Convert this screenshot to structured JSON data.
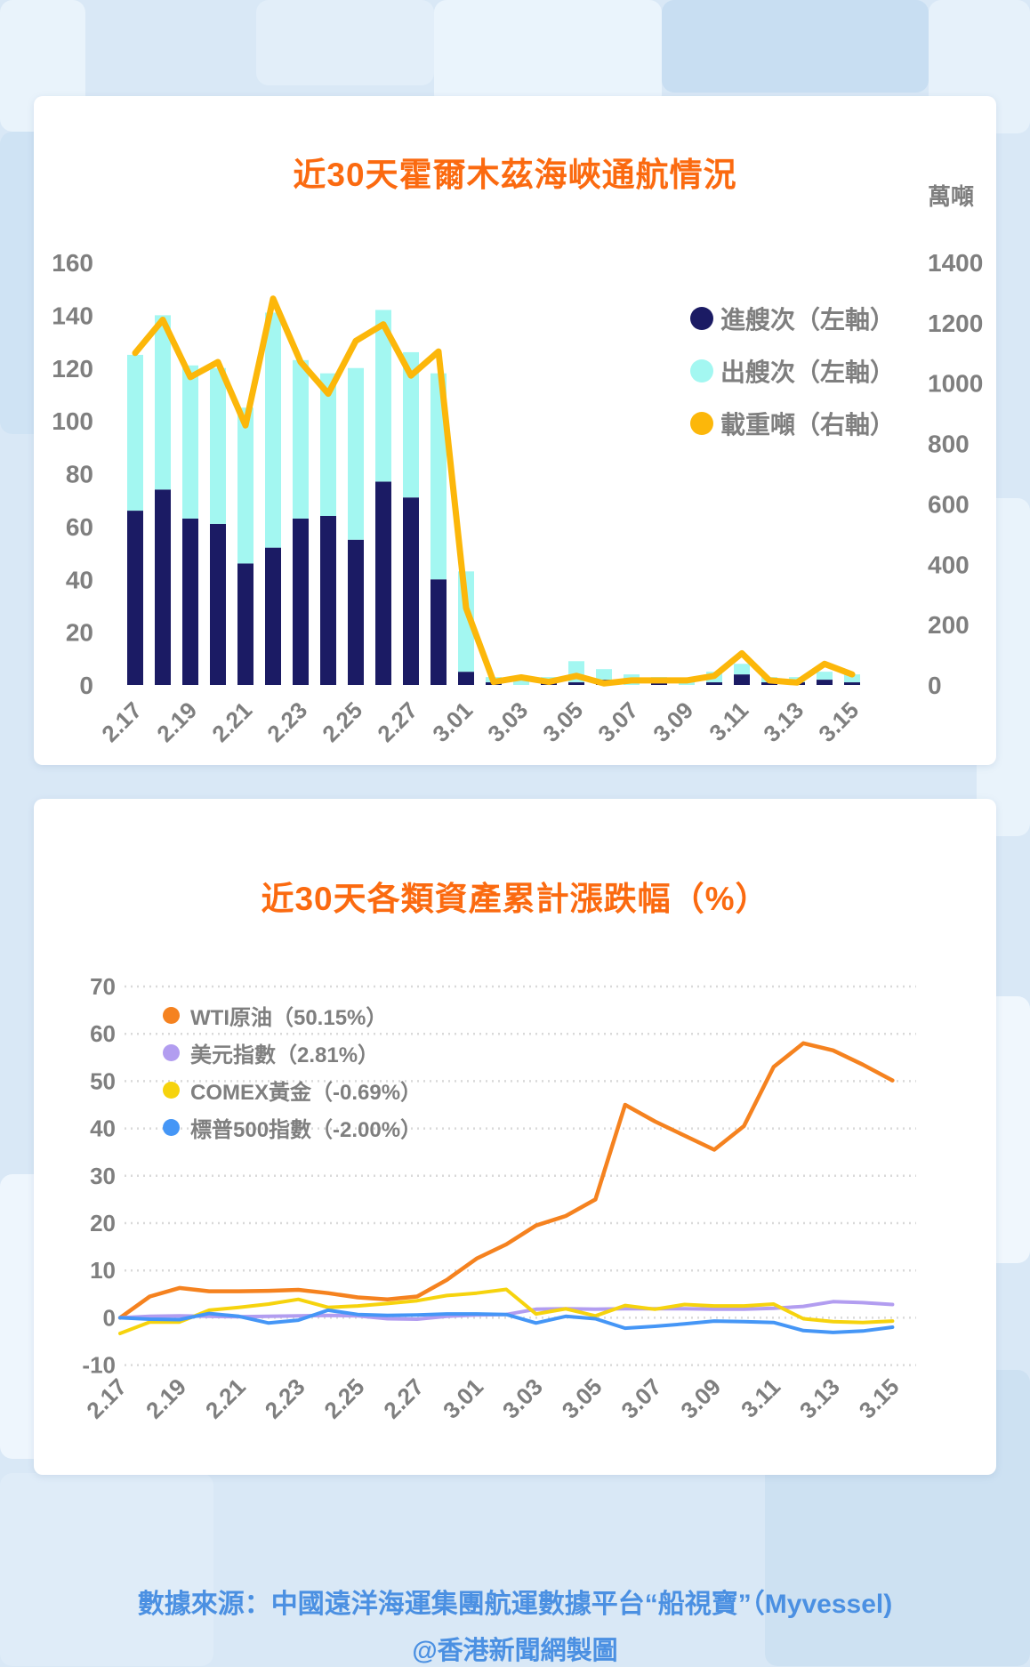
{
  "page": {
    "background": "#d9e8f6"
  },
  "footer": {
    "source_line": "數據來源：中國遠洋海運集團航運數據平台“船視寶”（Myvessel)",
    "credit_line": "@香港新聞網製圖",
    "color": "#4b90e2"
  },
  "chart_data": [
    {
      "type": "bar",
      "title": "近30天霍爾木茲海峽通航情況",
      "title_color": "#fb6a10",
      "legend_position": "right",
      "grid": false,
      "categories": [
        "2.17",
        "2.18",
        "2.19",
        "2.20",
        "2.21",
        "2.22",
        "2.23",
        "2.24",
        "2.25",
        "2.26",
        "2.27",
        "2.28",
        "3.01",
        "3.02",
        "3.03",
        "3.04",
        "3.05",
        "3.06",
        "3.07",
        "3.08",
        "3.09",
        "3.10",
        "3.11",
        "3.12",
        "3.13",
        "3.14",
        "3.15"
      ],
      "x_labels_shown": [
        "2.17",
        "2.19",
        "2.21",
        "2.23",
        "2.25",
        "2.27",
        "3.01",
        "3.03",
        "3.05",
        "3.07",
        "3.09",
        "3.11",
        "3.13",
        "3.15"
      ],
      "left_axis": {
        "min": 0,
        "max": 160,
        "step": 20
      },
      "right_axis": {
        "min": 0,
        "max": 1400,
        "step": 200,
        "unit": "萬噸"
      },
      "series": [
        {
          "name": "進艘次（左軸）",
          "kind": "bar-stacked",
          "axis": "left",
          "color": "#1b1b64",
          "values": [
            66,
            74,
            63,
            61,
            46,
            52,
            63,
            64,
            55,
            77,
            71,
            40,
            5,
            1,
            0,
            2,
            1,
            2,
            0,
            2,
            0,
            1,
            4,
            1,
            1,
            2,
            1
          ]
        },
        {
          "name": "出艘次（左軸）",
          "kind": "bar-stacked",
          "axis": "left",
          "color": "#a3f7f1",
          "values": [
            59,
            66,
            58,
            59,
            59,
            89,
            60,
            54,
            65,
            65,
            55,
            78,
            38,
            2,
            2,
            1,
            8,
            4,
            4,
            1,
            2,
            4,
            4,
            2,
            2,
            3,
            3
          ]
        },
        {
          "name": "載重噸（右軸）",
          "kind": "line",
          "axis": "right",
          "color": "#fcb70a",
          "values": [
            1100,
            1210,
            1020,
            1070,
            860,
            1280,
            1070,
            965,
            1140,
            1195,
            1025,
            1105,
            255,
            10,
            25,
            10,
            30,
            5,
            15,
            15,
            15,
            30,
            105,
            15,
            8,
            70,
            35
          ]
        }
      ]
    },
    {
      "type": "line",
      "title": "近30天各類資產累計漲跌幅（%）",
      "title_color": "#fb6a10",
      "legend_position": "top-left-inside",
      "grid": "dotted-horizontal",
      "categories": [
        "2.17",
        "2.18",
        "2.19",
        "2.20",
        "2.21",
        "2.22",
        "2.23",
        "2.24",
        "2.25",
        "2.26",
        "2.27",
        "2.28",
        "3.01",
        "3.02",
        "3.03",
        "3.04",
        "3.05",
        "3.06",
        "3.07",
        "3.08",
        "3.09",
        "3.10",
        "3.11",
        "3.12",
        "3.13",
        "3.14",
        "3.15"
      ],
      "x_labels_shown": [
        "2.17",
        "2.19",
        "2.21",
        "2.23",
        "2.25",
        "2.27",
        "3.01",
        "3.03",
        "3.05",
        "3.07",
        "3.09",
        "3.11",
        "3.13",
        "3.15"
      ],
      "y_axis": {
        "min": -10,
        "max": 70,
        "step": 10
      },
      "series": [
        {
          "name": "WTI原油（50.15%）",
          "color": "#f5821f",
          "values": [
            0,
            4.5,
            6.3,
            5.6,
            5.6,
            5.7,
            5.9,
            5.2,
            4.3,
            3.9,
            4.5,
            8,
            12.5,
            15.5,
            19.5,
            21.5,
            25,
            45,
            41.5,
            38.5,
            35.5,
            40.5,
            53,
            58,
            56.5,
            53.5,
            50.15
          ]
        },
        {
          "name": "美元指數（2.81%）",
          "color": "#b29df0",
          "values": [
            0,
            0.3,
            0.4,
            0.3,
            0.2,
            0.3,
            0.4,
            0.5,
            0.4,
            -0.2,
            -0.3,
            0.3,
            0.6,
            0.7,
            1.8,
            1.9,
            1.8,
            1.9,
            1.9,
            1.9,
            1.8,
            1.8,
            2.0,
            2.4,
            3.4,
            3.2,
            2.81
          ]
        },
        {
          "name": "COMEX黃金（-0.69%）",
          "color": "#f6d30d",
          "values": [
            -3.3,
            -0.9,
            -0.9,
            1.6,
            2.2,
            2.9,
            3.9,
            2.2,
            2.5,
            3.0,
            3.6,
            4.7,
            5.2,
            6.0,
            0.8,
            1.9,
            0.4,
            2.6,
            1.8,
            2.8,
            2.5,
            2.5,
            2.9,
            -0.2,
            -0.8,
            -1.0,
            -0.69
          ]
        },
        {
          "name": "標普500指數（-2.00%）",
          "color": "#4596f6",
          "values": [
            0,
            -0.3,
            -0.4,
            0.9,
            0.3,
            -1.1,
            -0.5,
            1.6,
            0.7,
            0.5,
            0.6,
            0.8,
            0.8,
            0.7,
            -1.1,
            0.3,
            -0.2,
            -2.2,
            -1.8,
            -1.3,
            -0.7,
            -0.8,
            -1.0,
            -2.7,
            -3.1,
            -2.8,
            -2.0
          ]
        }
      ]
    }
  ]
}
